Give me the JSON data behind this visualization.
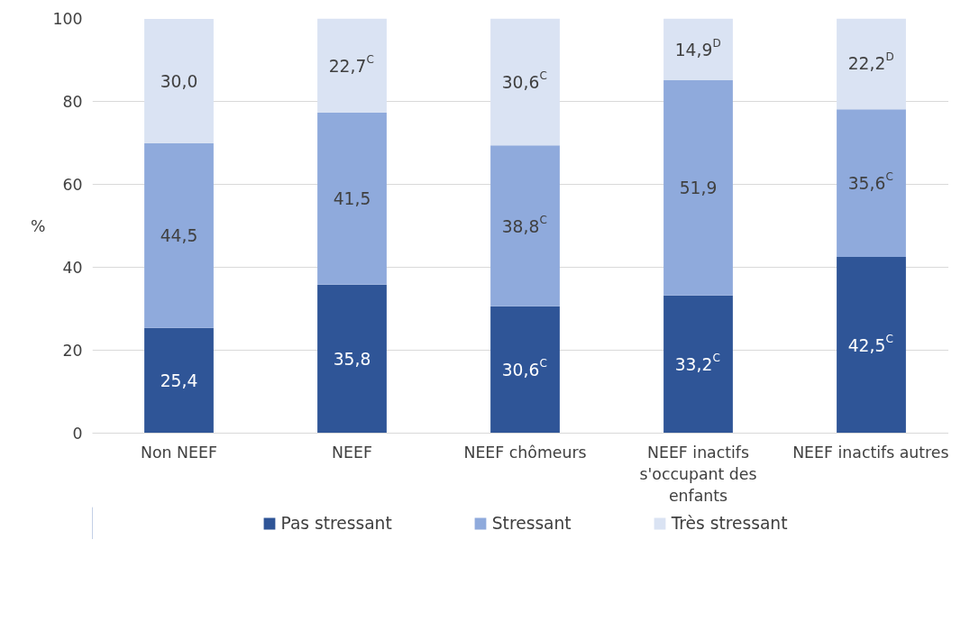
{
  "chart_data": {
    "type": "bar",
    "stacked": true,
    "ylabel": "%",
    "categories": [
      "Non NEEF",
      "NEEF",
      "NEEF chômeurs",
      "NEEF inactifs s'occupant des enfants",
      "NEEF inactifs autres"
    ],
    "series": [
      {
        "name": "Pas stressant",
        "color": "#2f5597",
        "values": [
          25.4,
          35.8,
          30.6,
          33.2,
          42.5
        ],
        "value_labels": [
          "25,4",
          "35,8",
          "30,6$^{C}$",
          "33,2$^{C}$",
          "42,5$^{C}$"
        ]
      },
      {
        "name": "Stressant",
        "color": "#8faadc",
        "values": [
          44.5,
          41.5,
          38.8,
          51.9,
          35.6
        ],
        "value_labels": [
          "44,5",
          "41,5",
          "38,8$^{C}$",
          "51,9",
          "35,6$^{C}$"
        ]
      },
      {
        "name": "Très stressant",
        "color": "#dae3f3",
        "values": [
          30.0,
          22.7,
          30.6,
          14.9,
          22.2
        ],
        "value_labels": [
          "30,0",
          "22,7$^{C}$",
          "30,6$^{C}$",
          "14,9$^{D}$",
          "22,2$^{D}$"
        ]
      }
    ],
    "ylim": [
      0,
      100
    ],
    "yticks": [
      0,
      20,
      40,
      60,
      80,
      100
    ],
    "grid": "y",
    "legend": "bottom"
  }
}
